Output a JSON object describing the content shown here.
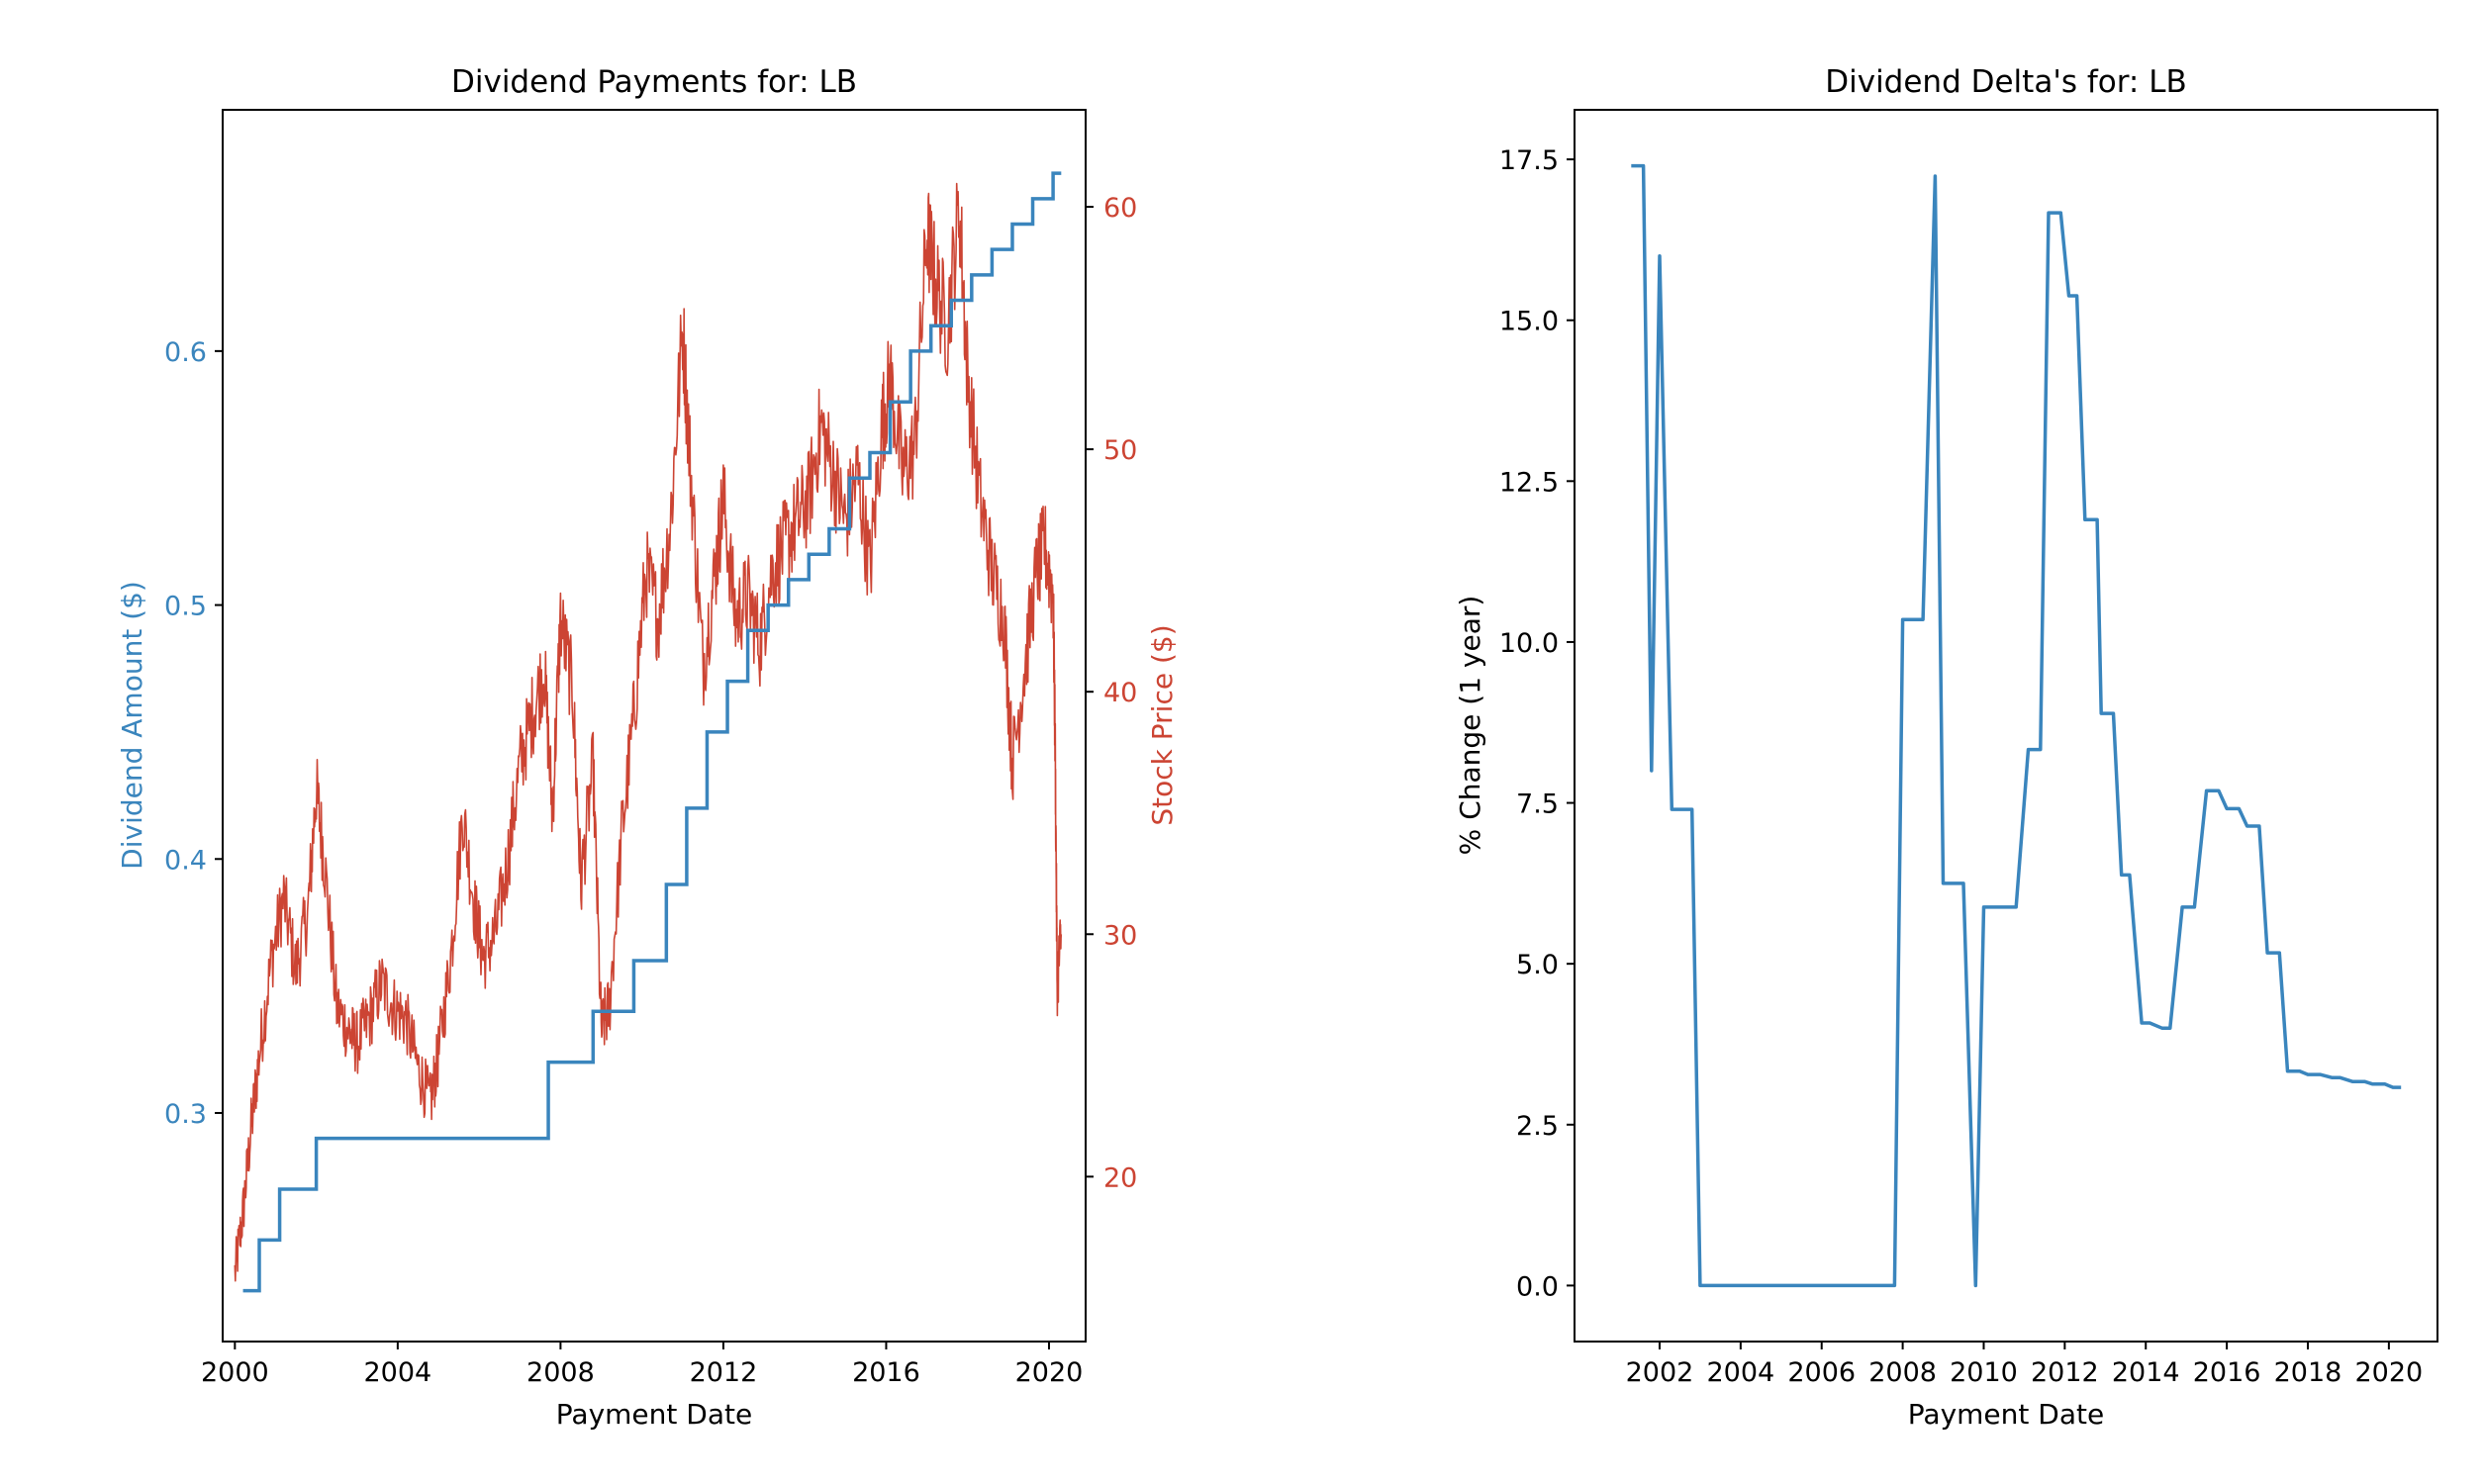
{
  "chart_data": [
    {
      "type": "line",
      "title": "Dividend Payments for: LB",
      "xlabel": "Payment Date",
      "ylabel": "Dividend Amount ($)",
      "ylabel2": "Stock Price ($)",
      "xlim": [
        1999.7,
        2020.9
      ],
      "ylim": [
        0.21,
        0.695
      ],
      "ylim2": [
        13.2,
        64.0
      ],
      "x_ticks": [
        2000,
        2004,
        2008,
        2012,
        2016,
        2020
      ],
      "x_tick_labels": [
        "2000",
        "2004",
        "2008",
        "2012",
        "2016",
        "2020"
      ],
      "y_ticks": [
        0.3,
        0.4,
        0.5,
        0.6
      ],
      "y_tick_labels": [
        "0.3",
        "0.4",
        "0.5",
        "0.6"
      ],
      "y2_ticks": [
        20,
        30,
        40,
        50,
        60
      ],
      "y2_tick_labels": [
        "20",
        "30",
        "40",
        "50",
        "60"
      ],
      "grid": false,
      "colors": {
        "dividend": "#3a85bd",
        "price": "#cc4433"
      },
      "series": [
        {
          "axis": "left",
          "style": "step",
          "x": [
            2000.2,
            2000.6,
            2001.1,
            2001.6,
            2002.0,
            2007.7,
            2008.3,
            2008.8,
            2009.8,
            2010.6,
            2011.1,
            2011.6,
            2012.1,
            2012.6,
            2013.1,
            2013.6,
            2014.1,
            2014.6,
            2015.1,
            2015.6,
            2016.1,
            2016.6,
            2017.1,
            2017.6,
            2018.1,
            2018.6,
            2019.1,
            2019.6,
            2020.1,
            2020.3
          ],
          "values": [
            0.23,
            0.25,
            0.27,
            0.27,
            0.29,
            0.32,
            0.32,
            0.34,
            0.36,
            0.39,
            0.42,
            0.45,
            0.47,
            0.49,
            0.5,
            0.51,
            0.52,
            0.53,
            0.55,
            0.56,
            0.58,
            0.6,
            0.61,
            0.62,
            0.63,
            0.64,
            0.65,
            0.66,
            0.67,
            0.67
          ]
        },
        {
          "axis": "right",
          "style": "line",
          "x": [
            2000.0,
            2000.2,
            2000.4,
            2000.6,
            2000.9,
            2001.2,
            2001.5,
            2001.8,
            2002.0,
            2002.2,
            2002.5,
            2002.8,
            2003.0,
            2003.3,
            2003.6,
            2003.9,
            2004.2,
            2004.5,
            2004.8,
            2005.0,
            2005.3,
            2005.6,
            2005.9,
            2006.1,
            2006.4,
            2006.7,
            2007.0,
            2007.3,
            2007.6,
            2007.8,
            2008.0,
            2008.3,
            2008.5,
            2008.8,
            2009.0,
            2009.2,
            2009.5,
            2009.8,
            2010.1,
            2010.4,
            2010.7,
            2011.0,
            2011.2,
            2011.5,
            2011.8,
            2012.0,
            2012.3,
            2012.6,
            2012.9,
            2013.2,
            2013.5,
            2013.8,
            2014.1,
            2014.4,
            2014.7,
            2015.0,
            2015.3,
            2015.6,
            2015.9,
            2016.1,
            2016.4,
            2016.7,
            2017.0,
            2017.2,
            2017.5,
            2017.8,
            2018.0,
            2018.3,
            2018.6,
            2018.9,
            2019.1,
            2019.4,
            2019.7,
            2019.9,
            2020.1,
            2020.15,
            2020.2,
            2020.3
          ],
          "values": [
            16.0,
            18.5,
            22.0,
            25.0,
            29.0,
            31.5,
            28.5,
            31.0,
            36.0,
            33.0,
            27.0,
            26.0,
            25.5,
            26.5,
            28.0,
            27.0,
            26.5,
            24.5,
            23.0,
            25.0,
            29.0,
            35.0,
            31.0,
            29.0,
            30.0,
            33.0,
            37.0,
            39.0,
            41.0,
            35.0,
            43.0,
            40.0,
            32.0,
            37.0,
            26.0,
            27.0,
            34.0,
            39.0,
            45.0,
            43.0,
            47.0,
            55.0,
            49.0,
            41.0,
            45.0,
            48.0,
            43.0,
            44.0,
            42.0,
            45.0,
            46.0,
            47.0,
            48.0,
            51.0,
            49.0,
            47.0,
            49.0,
            45.0,
            51.0,
            53.0,
            49.0,
            50.0,
            59.0,
            57.0,
            55.0,
            60.0,
            53.0,
            48.0,
            45.0,
            43.0,
            37.0,
            41.0,
            45.0,
            46.0,
            44.0,
            38.0,
            28.0,
            30.0
          ]
        }
      ]
    },
    {
      "type": "line",
      "title": "Dividend Delta's for: LB",
      "xlabel": "Payment Date",
      "ylabel": "% Change (1 year)",
      "xlim": [
        1999.9,
        2021.2
      ],
      "ylim": [
        -0.87,
        18.27
      ],
      "x_ticks": [
        2002,
        2004,
        2006,
        2008,
        2010,
        2012,
        2014,
        2016,
        2018,
        2020
      ],
      "x_tick_labels": [
        "2002",
        "2004",
        "2006",
        "2008",
        "2010",
        "2012",
        "2014",
        "2016",
        "2018",
        "2020"
      ],
      "y_ticks": [
        0.0,
        2.5,
        5.0,
        7.5,
        10.0,
        12.5,
        15.0,
        17.5
      ],
      "y_tick_labels": [
        "0.0",
        "2.5",
        "5.0",
        "7.5",
        "10.0",
        "12.5",
        "15.0",
        "17.5"
      ],
      "grid": false,
      "colors": {
        "delta": "#3a85bd"
      },
      "series": [
        {
          "style": "line",
          "x": [
            2001.3,
            2001.6,
            2001.8,
            2002.0,
            2002.3,
            2002.8,
            2003.0,
            2007.8,
            2008.0,
            2008.5,
            2008.8,
            2009.0,
            2009.5,
            2009.8,
            2010.0,
            2010.8,
            2011.1,
            2011.4,
            2011.6,
            2011.9,
            2012.1,
            2012.3,
            2012.5,
            2012.8,
            2012.9,
            2013.2,
            2013.4,
            2013.6,
            2013.9,
            2014.1,
            2014.4,
            2014.6,
            2014.9,
            2015.2,
            2015.5,
            2015.8,
            2016.0,
            2016.3,
            2016.5,
            2016.8,
            2017.0,
            2017.3,
            2017.5,
            2017.8,
            2018.0,
            2018.3,
            2018.6,
            2018.8,
            2019.1,
            2019.4,
            2019.6,
            2019.9,
            2020.1,
            2020.3
          ],
          "values": [
            17.4,
            17.4,
            8.0,
            16.0,
            7.4,
            7.4,
            0.0,
            0.0,
            10.35,
            10.35,
            17.24,
            6.25,
            6.25,
            0.0,
            5.88,
            5.88,
            8.33,
            8.33,
            16.67,
            16.67,
            15.38,
            15.38,
            11.9,
            11.9,
            8.89,
            8.89,
            6.38,
            6.38,
            4.08,
            4.08,
            4.0,
            4.0,
            5.88,
            5.88,
            7.69,
            7.69,
            7.41,
            7.41,
            7.14,
            7.14,
            5.17,
            5.17,
            3.33,
            3.33,
            3.28,
            3.28,
            3.23,
            3.23,
            3.17,
            3.17,
            3.13,
            3.13,
            3.08,
            3.08
          ]
        }
      ]
    }
  ]
}
